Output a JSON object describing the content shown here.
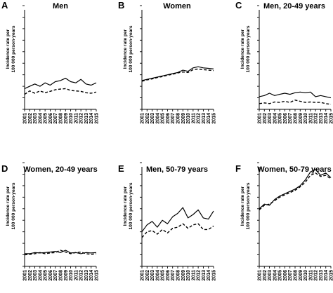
{
  "chart_data": [
    {
      "type": "line",
      "letter": "A",
      "title": "Men",
      "ylabel_line1": "Incidence rate per",
      "ylabel_line2": "100 000 person-years",
      "show_ylabel": true,
      "x": [
        "2001",
        "2002",
        "2003",
        "2004",
        "2005",
        "2006",
        "2007",
        "2008",
        "2009",
        "2010",
        "2011",
        "2012",
        "2013",
        "2014",
        "2015"
      ],
      "ylim": [
        0,
        4.5
      ],
      "series": [
        {
          "style": "solid",
          "values": [
            0.9,
            1.0,
            1.1,
            1.0,
            1.15,
            1.05,
            1.2,
            1.25,
            1.35,
            1.2,
            1.15,
            1.3,
            1.1,
            1.05,
            1.15
          ]
        },
        {
          "style": "dashed",
          "values": [
            0.65,
            0.8,
            0.7,
            0.8,
            0.72,
            0.78,
            0.85,
            0.88,
            0.9,
            0.82,
            0.8,
            0.78,
            0.72,
            0.7,
            0.75
          ]
        }
      ]
    },
    {
      "type": "line",
      "letter": "B",
      "title": "Women",
      "ylabel_line1": "Incidence rate per",
      "ylabel_line2": "100 000 person-years",
      "show_ylabel": true,
      "x": [
        "2001",
        "2002",
        "2003",
        "2004",
        "2005",
        "2006",
        "2007",
        "2008",
        "2009",
        "2010",
        "2011",
        "2012",
        "2013",
        "2014",
        "2015"
      ],
      "ylim": [
        0,
        4.5
      ],
      "series": [
        {
          "style": "solid",
          "values": [
            1.25,
            1.3,
            1.35,
            1.4,
            1.45,
            1.5,
            1.55,
            1.6,
            1.7,
            1.65,
            1.8,
            1.85,
            1.8,
            1.78,
            1.75
          ]
        },
        {
          "style": "dashed",
          "values": [
            1.22,
            1.28,
            1.32,
            1.38,
            1.42,
            1.48,
            1.52,
            1.58,
            1.62,
            1.6,
            1.72,
            1.75,
            1.72,
            1.7,
            1.68
          ]
        }
      ]
    },
    {
      "type": "line",
      "letter": "C",
      "title": "Men, 20-49 years",
      "ylabel_line1": "Incidence rate per",
      "ylabel_line2": "100 000 person-years",
      "show_ylabel": true,
      "x": [
        "2001",
        "2002",
        "2003",
        "2004",
        "2005",
        "2006",
        "2007",
        "2008",
        "2009",
        "2010",
        "2011",
        "2012",
        "2013",
        "2014",
        "2015"
      ],
      "ylim": [
        0,
        4.5
      ],
      "series": [
        {
          "style": "solid",
          "values": [
            0.55,
            0.6,
            0.7,
            0.6,
            0.65,
            0.7,
            0.65,
            0.72,
            0.75,
            0.72,
            0.75,
            0.55,
            0.6,
            0.55,
            0.5
          ]
        },
        {
          "style": "dashed",
          "values": [
            0.25,
            0.28,
            0.25,
            0.32,
            0.3,
            0.35,
            0.3,
            0.4,
            0.35,
            0.3,
            0.32,
            0.3,
            0.3,
            0.25,
            0.22
          ]
        }
      ]
    },
    {
      "type": "line",
      "letter": "D",
      "title": "Women, 20-49 years",
      "ylabel_line1": "Incidence rate per",
      "ylabel_line2": "100 000 person-years",
      "show_ylabel": true,
      "x": [
        "2001",
        "2002",
        "2003",
        "2004",
        "2005",
        "2006",
        "2007",
        "2008",
        "2009",
        "2010",
        "2011",
        "2012",
        "2013",
        "2014",
        "2015"
      ],
      "ylim": [
        0,
        4.5
      ],
      "series": [
        {
          "style": "solid",
          "values": [
            0.55,
            0.55,
            0.6,
            0.58,
            0.6,
            0.62,
            0.65,
            0.6,
            0.7,
            0.58,
            0.6,
            0.55,
            0.6,
            0.58,
            0.6
          ]
        },
        {
          "style": "dashed",
          "values": [
            0.5,
            0.52,
            0.55,
            0.6,
            0.55,
            0.58,
            0.6,
            0.7,
            0.62,
            0.55,
            0.6,
            0.62,
            0.55,
            0.52,
            0.55
          ]
        }
      ]
    },
    {
      "type": "line",
      "letter": "E",
      "title": "Men, 50-79 years",
      "ylabel_line1": "Incidence rate per",
      "ylabel_line2": "100 000 person-years",
      "show_ylabel": true,
      "x": [
        "2001",
        "2002",
        "2003",
        "2004",
        "2005",
        "2006",
        "2007",
        "2008",
        "2009",
        "2010",
        "2011",
        "2012",
        "2013",
        "2014",
        "2015"
      ],
      "ylim": [
        0,
        4.5
      ],
      "series": [
        {
          "style": "solid",
          "values": [
            1.5,
            1.8,
            1.95,
            1.7,
            2.0,
            1.85,
            2.15,
            2.3,
            2.55,
            2.1,
            2.25,
            2.45,
            2.1,
            2.05,
            2.4
          ]
        },
        {
          "style": "dashed",
          "values": [
            1.25,
            1.5,
            1.55,
            1.4,
            1.6,
            1.45,
            1.65,
            1.7,
            1.85,
            1.65,
            1.8,
            1.85,
            1.6,
            1.6,
            1.75
          ]
        }
      ]
    },
    {
      "type": "line",
      "letter": "F",
      "title": "Women, 50-79 years",
      "ylabel_line1": "Incidence rate per",
      "ylabel_line2": "100 000 person-years",
      "show_ylabel": true,
      "x": [
        "2001",
        "2002",
        "2003",
        "2004",
        "2005",
        "2006",
        "2007",
        "2008",
        "2009",
        "2010",
        "2011",
        "2012",
        "2013",
        "2014",
        "2015"
      ],
      "ylim": [
        0,
        4.5
      ],
      "series": [
        {
          "style": "solid",
          "values": [
            2.5,
            2.7,
            2.65,
            2.9,
            3.05,
            3.15,
            3.25,
            3.35,
            3.5,
            3.75,
            4.1,
            4.2,
            3.95,
            4.05,
            3.85
          ]
        },
        {
          "style": "dashed",
          "values": [
            2.45,
            2.65,
            2.7,
            2.85,
            3.0,
            3.1,
            3.2,
            3.3,
            3.45,
            3.65,
            3.95,
            4.05,
            3.9,
            3.95,
            3.8
          ]
        }
      ]
    }
  ]
}
